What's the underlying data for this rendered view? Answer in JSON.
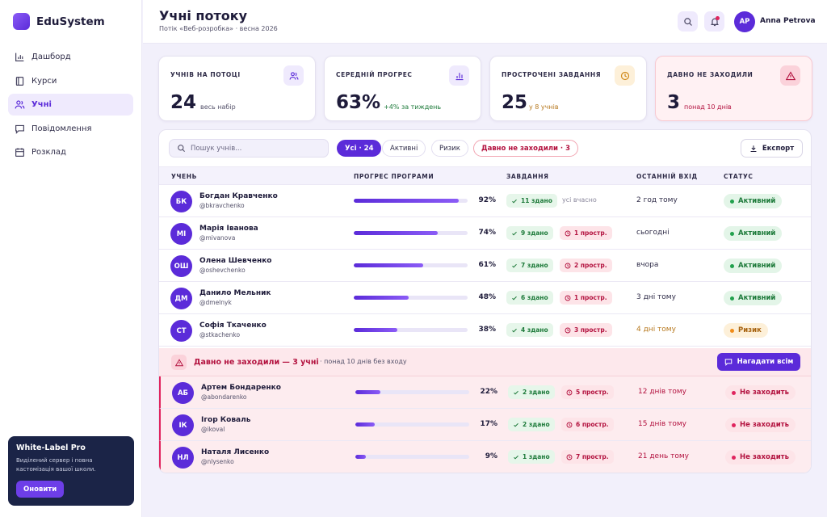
{
  "brand": {
    "name": "EduSystem"
  },
  "nav": [
    {
      "label": "Дашборд",
      "icon": "chart-icon",
      "active": false
    },
    {
      "label": "Курси",
      "icon": "book-icon",
      "active": false
    },
    {
      "label": "Учні",
      "icon": "users-icon",
      "active": true
    },
    {
      "label": "Повідомлення",
      "icon": "message-icon",
      "active": false
    },
    {
      "label": "Розклад",
      "icon": "calendar-icon",
      "active": false
    }
  ],
  "promo": {
    "title": "White-Label Pro",
    "text": "Виділений сервер і повна кастомізація вашої школи.",
    "button": "Оновити"
  },
  "header": {
    "title": "Учні потоку",
    "subtitle": "Потік «Веб-розробка» · весна 2026",
    "user": {
      "initials": "АР",
      "name": "Anna Petrova"
    }
  },
  "stats": [
    {
      "label": "УЧНІВ НА ПОТОЦІ",
      "value": "24",
      "note": "весь набір",
      "icon": "users-icon",
      "tone": "neutral"
    },
    {
      "label": "СЕРЕДНІЙ ПРОГРЕС",
      "value": "63%",
      "note": "+4% за тиждень",
      "icon": "bar-chart-icon",
      "tone": "success"
    },
    {
      "label": "ПРОСТРОЧЕНІ ЗАВДАННЯ",
      "value": "25",
      "note": "у 8 учнів",
      "icon": "clock-icon",
      "tone": "warning"
    },
    {
      "label": "ДАВНО НЕ ЗАХОДИЛИ",
      "value": "3",
      "note": "понад 10 днів",
      "icon": "alert-icon",
      "tone": "danger"
    }
  ],
  "toolbar": {
    "search_placeholder": "Пошук учнів...",
    "filters": [
      "Усі · 24",
      "Активні",
      "Ризик",
      "Давно не заходили · 3"
    ],
    "active_filter": "Усі · 24",
    "export_label": "Експорт"
  },
  "table": {
    "columns": [
      "УЧЕНЬ",
      "ПРОГРЕС ПРОГРАМИ",
      "ЗАВДАННЯ",
      "ОСТАННІЙ ВХІД",
      "СТАТУС"
    ],
    "rows": [
      {
        "initials": "БК",
        "name": "Богдан Кравченко",
        "username": "@bkravchenko",
        "progress": 92,
        "progress_label": "92%",
        "done": "11 здано",
        "late": "",
        "late_note": "усі вчасно",
        "last_login": "2 год тому",
        "last_tone": "normal",
        "status": "Активний",
        "status_tone": "ok"
      },
      {
        "initials": "МІ",
        "name": "Марія Іванова",
        "username": "@mivanova",
        "progress": 74,
        "progress_label": "74%",
        "done": "9 здано",
        "late": "1 простр.",
        "late_note": "",
        "last_login": "сьогодні",
        "last_tone": "normal",
        "status": "Активний",
        "status_tone": "ok"
      },
      {
        "initials": "ОШ",
        "name": "Олена Шевченко",
        "username": "@oshevchenko",
        "progress": 61,
        "progress_label": "61%",
        "done": "7 здано",
        "late": "2 простр.",
        "late_note": "",
        "last_login": "вчора",
        "last_tone": "normal",
        "status": "Активний",
        "status_tone": "ok"
      },
      {
        "initials": "ДМ",
        "name": "Данило Мельник",
        "username": "@dmelnyk",
        "progress": 48,
        "progress_label": "48%",
        "done": "6 здано",
        "late": "1 простр.",
        "late_note": "",
        "last_login": "3 дні тому",
        "last_tone": "normal",
        "status": "Активний",
        "status_tone": "ok"
      },
      {
        "initials": "СТ",
        "name": "Софія Ткаченко",
        "username": "@stkachenko",
        "progress": 38,
        "progress_label": "38%",
        "done": "4 здано",
        "late": "3 простр.",
        "late_note": "",
        "last_login": "4 дні тому",
        "last_tone": "warn",
        "status": "Ризик",
        "status_tone": "risk"
      }
    ]
  },
  "inactive_section": {
    "title": "Давно не заходили — 3 учні",
    "subtitle": "· понад 10 днів без входу",
    "button": "Нагадати всім",
    "rows": [
      {
        "initials": "АБ",
        "name": "Артем Бондаренко",
        "username": "@abondarenko",
        "progress": 22,
        "progress_label": "22%",
        "done": "2 здано",
        "late": "5 простр.",
        "last_login": "12 днів тому",
        "status": "Не заходить"
      },
      {
        "initials": "ІК",
        "name": "Ігор Коваль",
        "username": "@ikoval",
        "progress": 17,
        "progress_label": "17%",
        "done": "2 здано",
        "late": "6 простр.",
        "last_login": "15 днів тому",
        "status": "Не заходить"
      },
      {
        "initials": "НЛ",
        "name": "Наталя Лисенко",
        "username": "@nlysenko",
        "progress": 9,
        "progress_label": "9%",
        "done": "1 здано",
        "late": "7 простр.",
        "last_login": "21 день тому",
        "status": "Не заходить"
      }
    ]
  },
  "colors": {
    "accent": "#5b2bd9",
    "success": "#1d7a3a",
    "warning": "#b7791f",
    "danger": "#b3123f"
  }
}
